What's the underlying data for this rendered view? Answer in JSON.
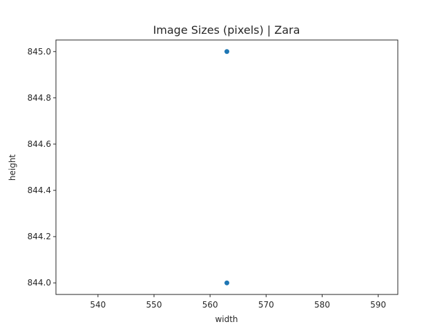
{
  "chart_data": {
    "type": "scatter",
    "title": "Image Sizes (pixels) | Zara",
    "xlabel": "width",
    "ylabel": "height",
    "xlim": [
      532.5,
      593.5
    ],
    "ylim": [
      843.95,
      845.05
    ],
    "xticks": [
      540,
      550,
      560,
      570,
      580,
      590
    ],
    "yticks": [
      844.0,
      844.2,
      844.4,
      844.6,
      844.8,
      845.0
    ],
    "xtick_labels": [
      "540",
      "550",
      "560",
      "570",
      "580",
      "590"
    ],
    "ytick_labels": [
      "844.0",
      "844.2",
      "844.4",
      "844.6",
      "844.8",
      "845.0"
    ],
    "points": [
      {
        "x": 563,
        "y": 845
      },
      {
        "x": 563,
        "y": 844
      }
    ],
    "marker_color": "#1f77b4",
    "grid": false
  }
}
